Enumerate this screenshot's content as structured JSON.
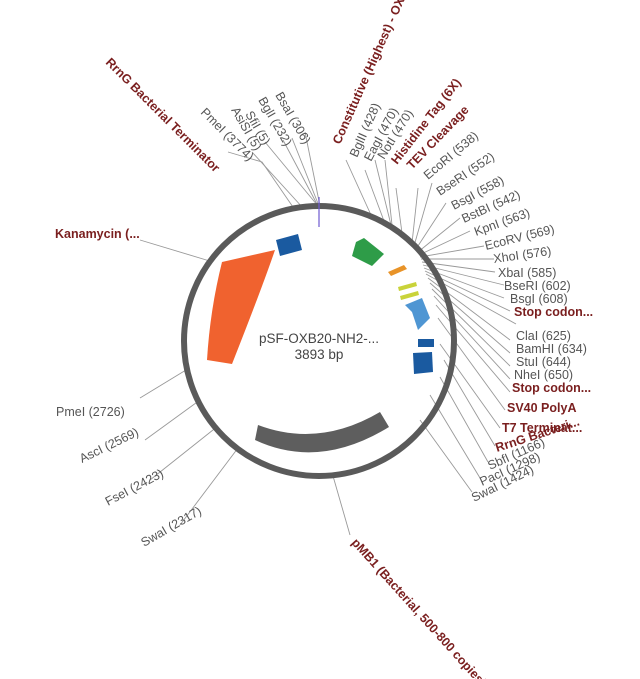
{
  "plasmid": {
    "name": "pSF-OXB20-NH2-...",
    "size": "3893 bp"
  },
  "colors": {
    "backbone": "#5a5a5a",
    "kanamycin": "#f0622f",
    "promoter": "#2e9c48",
    "tag": "#e89328",
    "cleavage": "#c9d33a",
    "mcs": "#4f96d3",
    "terminator": "#1a5aa0",
    "origin": "#5e5e5e",
    "feature_label": "#7a1f1f",
    "enzyme_label": "#555555"
  },
  "labels": {
    "rrng_left": "RrnG Bacterial Terminator",
    "pmei_top": "PmeI (3774)",
    "asisi": "AsiSI (5)",
    "sfii": "SfiI (5)",
    "bgli_232": "BglI (232)",
    "bsai": "BsaI (306)",
    "constitutive": "Constitutive (Highest) - OXB20",
    "bglii": "BglII (428)",
    "eagi": "EagI (470)",
    "noti": "NotI (470)",
    "histag": "Histidine Tag (6X)",
    "tev": "TEV Cleavage",
    "ecori": "EcoRI (538)",
    "bseri_552": "BseRI (552)",
    "bsgi_558": "BsgI (558)",
    "bstbi": "BstBI (542)",
    "kpni": "KpnI (563)",
    "ecorv": "EcoRV (569)",
    "xhoi": "XhoI (576)",
    "xbai": "XbaI (585)",
    "bseri_602": "BseRI (602)",
    "bsgi_608": "BsgI (608)",
    "stop1": "Stop codon...",
    "clai": "ClaI (625)",
    "bamhi": "BamHI (634)",
    "stui": "StuI (644)",
    "nhei": "NheI (650)",
    "stop2": "Stop codon...",
    "sv40": "SV40 PolyA",
    "t7term": "T7 Terminat...",
    "rrng_right": "RrnG Bacteri...",
    "sbfi": "SbfI (1166)",
    "paci": "PacI (1298)",
    "swai_1424": "SwaI (1424)",
    "kanamycin": "Kanamycin (...",
    "pmei_2726": "PmeI (2726)",
    "asci": "AscI (2569)",
    "fsei": "FseI (2423)",
    "swai_2317": "SwaI (2317)",
    "pmb1": "pMB1 (Bacterial, 500-800 copies)"
  }
}
